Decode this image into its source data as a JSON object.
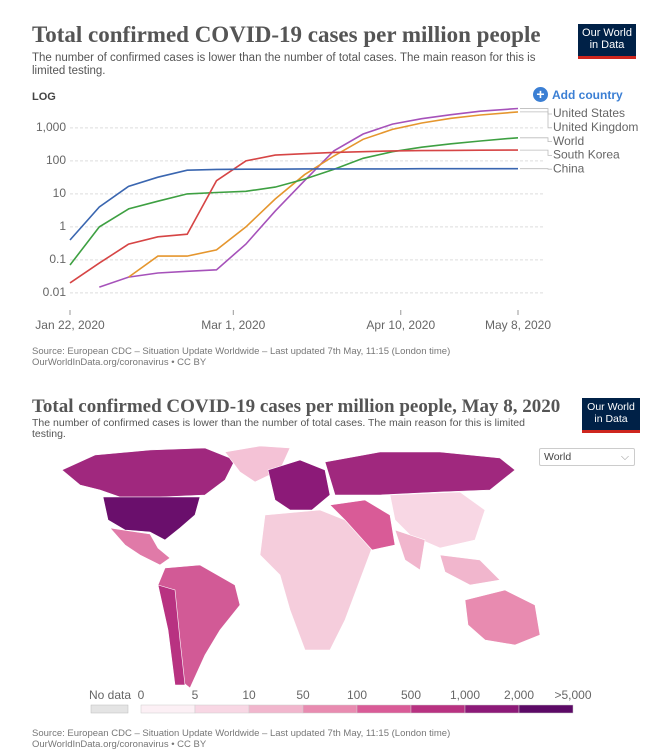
{
  "chart_data": [
    {
      "type": "line",
      "title": "Total confirmed COVID-19 cases per million people",
      "subtitle": "The number of confirmed cases is lower than the number of total cases. The main reason for this is limited testing.",
      "scale_label": "LOG",
      "log_scale": true,
      "grid": true,
      "add_button": "Add country",
      "logo": "Our World in Data",
      "x": [
        "2020-01-22",
        "2020-01-29",
        "2020-02-05",
        "2020-02-12",
        "2020-02-19",
        "2020-02-26",
        "2020-03-04",
        "2020-03-11",
        "2020-03-18",
        "2020-03-25",
        "2020-04-01",
        "2020-04-08",
        "2020-04-15",
        "2020-04-22",
        "2020-04-29",
        "2020-05-06",
        "2020-05-08"
      ],
      "xlim": [
        "2020-01-22",
        "2020-05-08"
      ],
      "xticks": [
        {
          "value": "2020-01-22",
          "label": "Jan 22, 2020"
        },
        {
          "value": "2020-03-01",
          "label": "Mar 1, 2020"
        },
        {
          "value": "2020-04-10",
          "label": "Apr 10, 2020"
        },
        {
          "value": "2020-05-08",
          "label": "May 8, 2020"
        }
      ],
      "ylim": [
        0.004,
        4000
      ],
      "yticks": [
        0.01,
        0.1,
        1,
        10,
        100,
        {
          "value": 1000,
          "label": "1,000"
        }
      ],
      "series": [
        {
          "name": "United States",
          "color": "#a652ba",
          "values": [
            null,
            0.015,
            0.03,
            0.04,
            0.045,
            0.05,
            0.3,
            3,
            25,
            200,
            650,
            1300,
            1900,
            2500,
            3200,
            3700,
            3850
          ]
        },
        {
          "name": "United Kingdom",
          "color": "#e5962e",
          "values": [
            null,
            null,
            0.03,
            0.13,
            0.13,
            0.2,
            1,
            7,
            38,
            140,
            450,
            900,
            1400,
            1950,
            2450,
            2900,
            3050
          ]
        },
        {
          "name": "World",
          "color": "#3ea042",
          "values": [
            0.07,
            1,
            3.5,
            6,
            10,
            11,
            12,
            16,
            28,
            55,
            120,
            190,
            260,
            330,
            400,
            480,
            500
          ]
        },
        {
          "name": "South Korea",
          "color": "#d64545",
          "values": [
            0.02,
            0.08,
            0.3,
            0.5,
            0.6,
            25,
            100,
            150,
            165,
            180,
            190,
            200,
            205,
            208,
            210,
            212,
            212
          ]
        },
        {
          "name": "China",
          "color": "#3a66b0",
          "values": [
            0.4,
            4,
            17,
            32,
            52,
            55,
            56,
            56,
            57,
            57,
            57,
            57,
            58,
            58,
            58,
            58,
            58
          ]
        }
      ],
      "source": "Source: European CDC – Situation Update Worldwide – Last updated 7th May, 11:15 (London time)",
      "source_url": "OurWorldInData.org/coronavirus • CC BY"
    },
    {
      "type": "map",
      "title": "Total confirmed COVID-19 cases per million people, May 8, 2020",
      "subtitle": "The number of confirmed cases is lower than the number of total cases. The main reason for this is limited testing.",
      "logo": "Our World in Data",
      "region_selector": "World",
      "no_data_label": "No data",
      "no_data_color": "#e4e4e4",
      "bins": [
        0,
        5,
        10,
        50,
        100,
        500,
        {
          "value": 1000,
          "label": "1,000"
        },
        {
          "value": 2000,
          "label": "2,000"
        },
        {
          "value": 5000,
          "label": ">5,000"
        }
      ],
      "colors": [
        "#fcf0f5",
        "#f8d7e4",
        "#f1b6cd",
        "#e88bb0",
        "#d95b97",
        "#b83281",
        "#8c1a78",
        "#5c0a66"
      ],
      "source": "Source: European CDC – Situation Update Worldwide – Last updated 7th May, 11:15 (London time)",
      "source_url": "OurWorldInData.org/coronavirus • CC BY"
    }
  ]
}
